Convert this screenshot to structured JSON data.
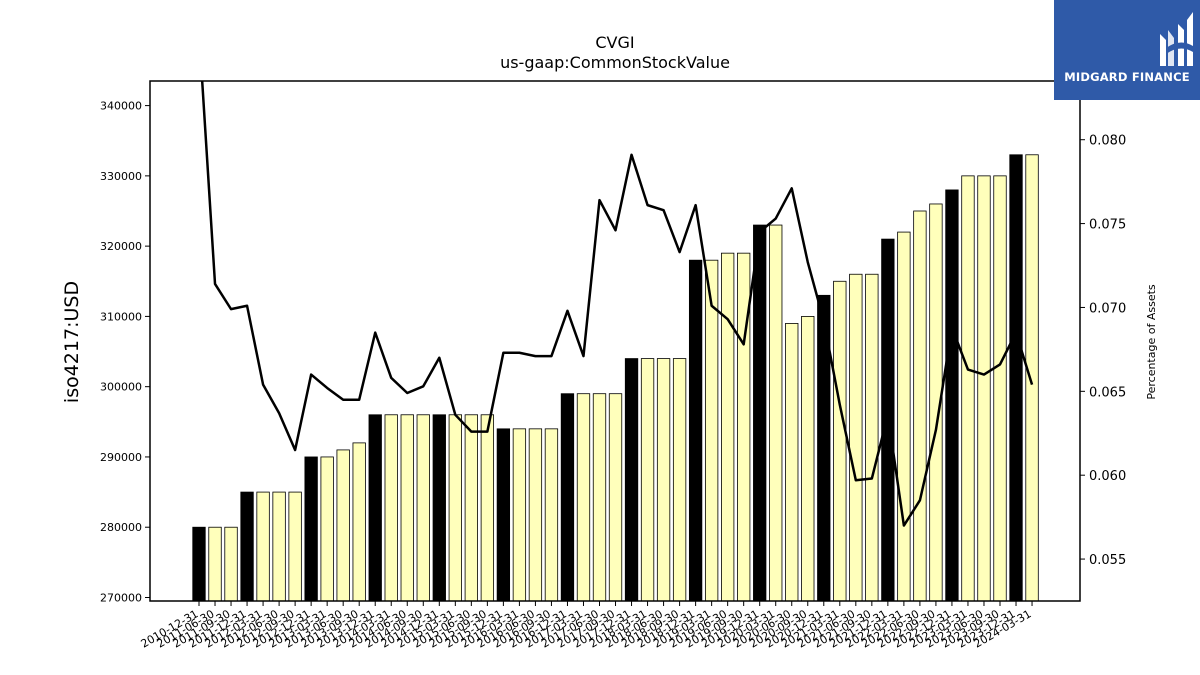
{
  "brand": {
    "name": "MIDGARD FINANCE",
    "bg_color": "#2f5aa8",
    "mark_icon": "midgard-logo-icon"
  },
  "chart_data": {
    "type": "bar",
    "title": "CVGI",
    "subtitle": "us-gaap:CommonStockValue",
    "ylabel": "iso4217:USD",
    "y2label": "Percentage of Assets",
    "ylim": [
      269500,
      343500
    ],
    "y2lim": [
      0.0525,
      0.0835
    ],
    "yticks": [
      270000,
      280000,
      290000,
      300000,
      310000,
      320000,
      330000,
      340000
    ],
    "y2ticks": [
      0.055,
      0.06,
      0.065,
      0.07,
      0.075,
      0.08
    ],
    "categories": [
      "2010-12-31",
      "2011-06-30",
      "2011-09-30",
      "2011-12-31",
      "2012-03-31",
      "2012-06-30",
      "2012-09-30",
      "2012-12-31",
      "2013-03-31",
      "2013-06-30",
      "2013-09-30",
      "2013-12-31",
      "2014-03-31",
      "2014-06-30",
      "2014-09-30",
      "2014-12-31",
      "2015-03-31",
      "2015-06-30",
      "2015-09-30",
      "2015-12-31",
      "2016-03-31",
      "2016-06-30",
      "2016-09-30",
      "2016-12-31",
      "2017-03-31",
      "2017-06-30",
      "2017-09-30",
      "2017-12-31",
      "2018-03-31",
      "2018-06-30",
      "2018-09-30",
      "2018-12-31",
      "2019-03-31",
      "2019-06-30",
      "2019-09-30",
      "2019-12-31",
      "2020-03-31",
      "2020-06-30",
      "2020-09-30",
      "2020-12-31",
      "2021-03-31",
      "2021-06-30",
      "2021-09-30",
      "2021-12-31",
      "2022-03-31",
      "2022-06-30",
      "2022-09-30",
      "2022-12-31",
      "2023-03-31",
      "2023-06-30",
      "2023-09-30",
      "2023-12-31",
      "2024-03-31"
    ],
    "series": [
      {
        "kind": "bar",
        "values": [
          280000,
          280000,
          280000,
          285000,
          285000,
          285000,
          285000,
          290000,
          290000,
          291000,
          292000,
          296000,
          296000,
          296000,
          296000,
          296000,
          296000,
          296000,
          296000,
          294000,
          294000,
          294000,
          294000,
          299000,
          299000,
          299000,
          299000,
          304000,
          304000,
          304000,
          304000,
          318000,
          318000,
          319000,
          319000,
          323000,
          323000,
          309000,
          310000,
          313000,
          315000,
          316000,
          316000,
          321000,
          322000,
          325000,
          326000,
          328000,
          330000,
          330000,
          330000,
          333000,
          333000
        ],
        "year_end": [
          true,
          false,
          false,
          true,
          false,
          false,
          false,
          true,
          false,
          false,
          false,
          true,
          false,
          false,
          false,
          true,
          false,
          false,
          false,
          true,
          false,
          false,
          false,
          true,
          false,
          false,
          false,
          true,
          false,
          false,
          false,
          true,
          false,
          false,
          false,
          true,
          false,
          false,
          false,
          true,
          false,
          false,
          false,
          true,
          false,
          false,
          false,
          true,
          false,
          false,
          false,
          true,
          false
        ],
        "year_end_color": "#000000",
        "quarter_color": "#ffffbb"
      },
      {
        "kind": "line",
        "axis": "right",
        "color": "#000000",
        "values": [
          0.0865,
          0.0714,
          0.0699,
          0.0701,
          0.0654,
          0.0637,
          0.0615,
          0.066,
          0.0652,
          0.0645,
          0.0645,
          0.0685,
          0.0658,
          0.0649,
          0.0653,
          0.067,
          0.0636,
          0.0626,
          0.0626,
          0.0673,
          0.0673,
          0.0671,
          0.0671,
          0.0698,
          0.0671,
          0.0764,
          0.0746,
          0.0791,
          0.0761,
          0.0758,
          0.0733,
          0.0761,
          0.0701,
          0.0693,
          0.0678,
          0.0745,
          0.0753,
          0.0771,
          0.0727,
          0.0692,
          0.0642,
          0.0597,
          0.0598,
          0.0636,
          0.057,
          0.0585,
          0.0627,
          0.0688,
          0.0663,
          0.066,
          0.0666,
          0.0685,
          0.0654
        ]
      }
    ]
  }
}
